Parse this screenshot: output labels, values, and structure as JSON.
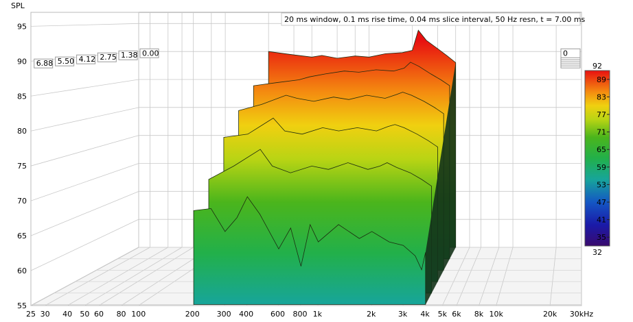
{
  "chart_data": {
    "type": "area",
    "title": "20 ms window, 0.1 ms rise time, 0.04 ms slice interval, 50 Hz resn, t = 7.00 ms",
    "ylabel": "SPL",
    "xlabel": "",
    "x_scale": "log",
    "xlim": [
      25,
      30000
    ],
    "ylim": [
      55,
      97
    ],
    "x_ticks": [
      25,
      30,
      40,
      50,
      60,
      80,
      100,
      200,
      300,
      400,
      600,
      800,
      1000,
      2000,
      3000,
      4000,
      5000,
      6000,
      8000,
      10000,
      20000,
      30000
    ],
    "x_tick_labels": [
      "25",
      "30",
      "40",
      "50",
      "60",
      "80",
      "100",
      "200",
      "300",
      "400",
      "600",
      "800",
      "1k",
      "2k",
      "3k",
      "4k",
      "5k",
      "6k",
      "8k",
      "10k",
      "20k",
      "30kHz"
    ],
    "y_ticks": [
      55,
      60,
      65,
      70,
      75,
      80,
      85,
      90,
      95
    ],
    "y_tick_labels": [
      "55",
      "60",
      "65",
      "70",
      "75",
      "80",
      "85",
      "90",
      "95"
    ],
    "time_axis_label_values": [
      "6.88",
      "5.50",
      "4.12",
      "2.75",
      "1.38",
      "0.00"
    ],
    "time_axis_right_label_values": [
      "6.88",
      "5.50",
      "4.12",
      "2.75",
      "1.3",
      "0"
    ],
    "time_ms": [
      0.0,
      1.38,
      2.75,
      4.12,
      5.5,
      6.88
    ],
    "grid": true,
    "colorbar": {
      "top_label": "92",
      "bottom_label": "32",
      "tick_labels": [
        "89",
        "83",
        "77",
        "71",
        "65",
        "59",
        "53",
        "47",
        "41",
        "35"
      ],
      "range": [
        32,
        92
      ]
    },
    "series": [
      {
        "time_ms": 0.0,
        "x": [
          200,
          280,
          400,
          470,
          600,
          800,
          1000,
          1300,
          1700,
          2000,
          2200,
          2500,
          3000,
          3500,
          4000
        ],
        "y": [
          90.0,
          89.5,
          89.0,
          89.3,
          88.8,
          89.2,
          89.0,
          89.6,
          89.8,
          90.2,
          93.8,
          92.0,
          90.5,
          89.2,
          88.0
        ]
      },
      {
        "time_ms": 1.38,
        "x": [
          200,
          280,
          400,
          470,
          600,
          800,
          1000,
          1300,
          1700,
          2000,
          2200,
          2500,
          3000,
          3500,
          4000
        ],
        "y": [
          84.5,
          85.0,
          85.5,
          86.0,
          86.5,
          87.0,
          86.8,
          87.2,
          87.0,
          87.5,
          88.5,
          87.8,
          86.5,
          85.5,
          84.5
        ]
      },
      {
        "time_ms": 2.75,
        "x": [
          200,
          280,
          400,
          470,
          600,
          800,
          1000,
          1300,
          1700,
          2000,
          2200,
          2500,
          3000,
          3500,
          4000
        ],
        "y": [
          81.0,
          82.0,
          83.5,
          83.0,
          82.5,
          83.2,
          82.8,
          83.5,
          83.0,
          83.6,
          84.0,
          83.5,
          82.5,
          81.5,
          80.5
        ]
      },
      {
        "time_ms": 4.12,
        "x": [
          200,
          280,
          400,
          470,
          600,
          800,
          1000,
          1300,
          1700,
          2000,
          2200,
          2500,
          3000,
          3500,
          4000
        ],
        "y": [
          77.5,
          78.0,
          80.5,
          78.5,
          78.0,
          79.0,
          78.5,
          79.0,
          78.5,
          79.2,
          79.5,
          79.0,
          78.0,
          77.0,
          76.0
        ]
      },
      {
        "time_ms": 5.5,
        "x": [
          200,
          280,
          400,
          470,
          600,
          800,
          1000,
          1300,
          1700,
          2000,
          2200,
          2500,
          3000,
          3500,
          4000
        ],
        "y": [
          72.0,
          74.0,
          76.5,
          74.0,
          73.0,
          74.0,
          73.5,
          74.5,
          73.5,
          74.0,
          74.5,
          73.8,
          73.0,
          72.0,
          71.0
        ]
      },
      {
        "time_ms": 6.88,
        "x": [
          200,
          250,
          300,
          350,
          400,
          470,
          600,
          700,
          800,
          900,
          1000,
          1300,
          1700,
          2000,
          2500,
          3000,
          3500,
          3800,
          4000
        ],
        "y": [
          68.5,
          68.8,
          65.5,
          67.5,
          70.5,
          68.0,
          63.0,
          66.0,
          60.5,
          66.5,
          64.0,
          66.5,
          64.5,
          65.5,
          64.0,
          63.5,
          62.0,
          60.0,
          62.5
        ]
      }
    ]
  }
}
